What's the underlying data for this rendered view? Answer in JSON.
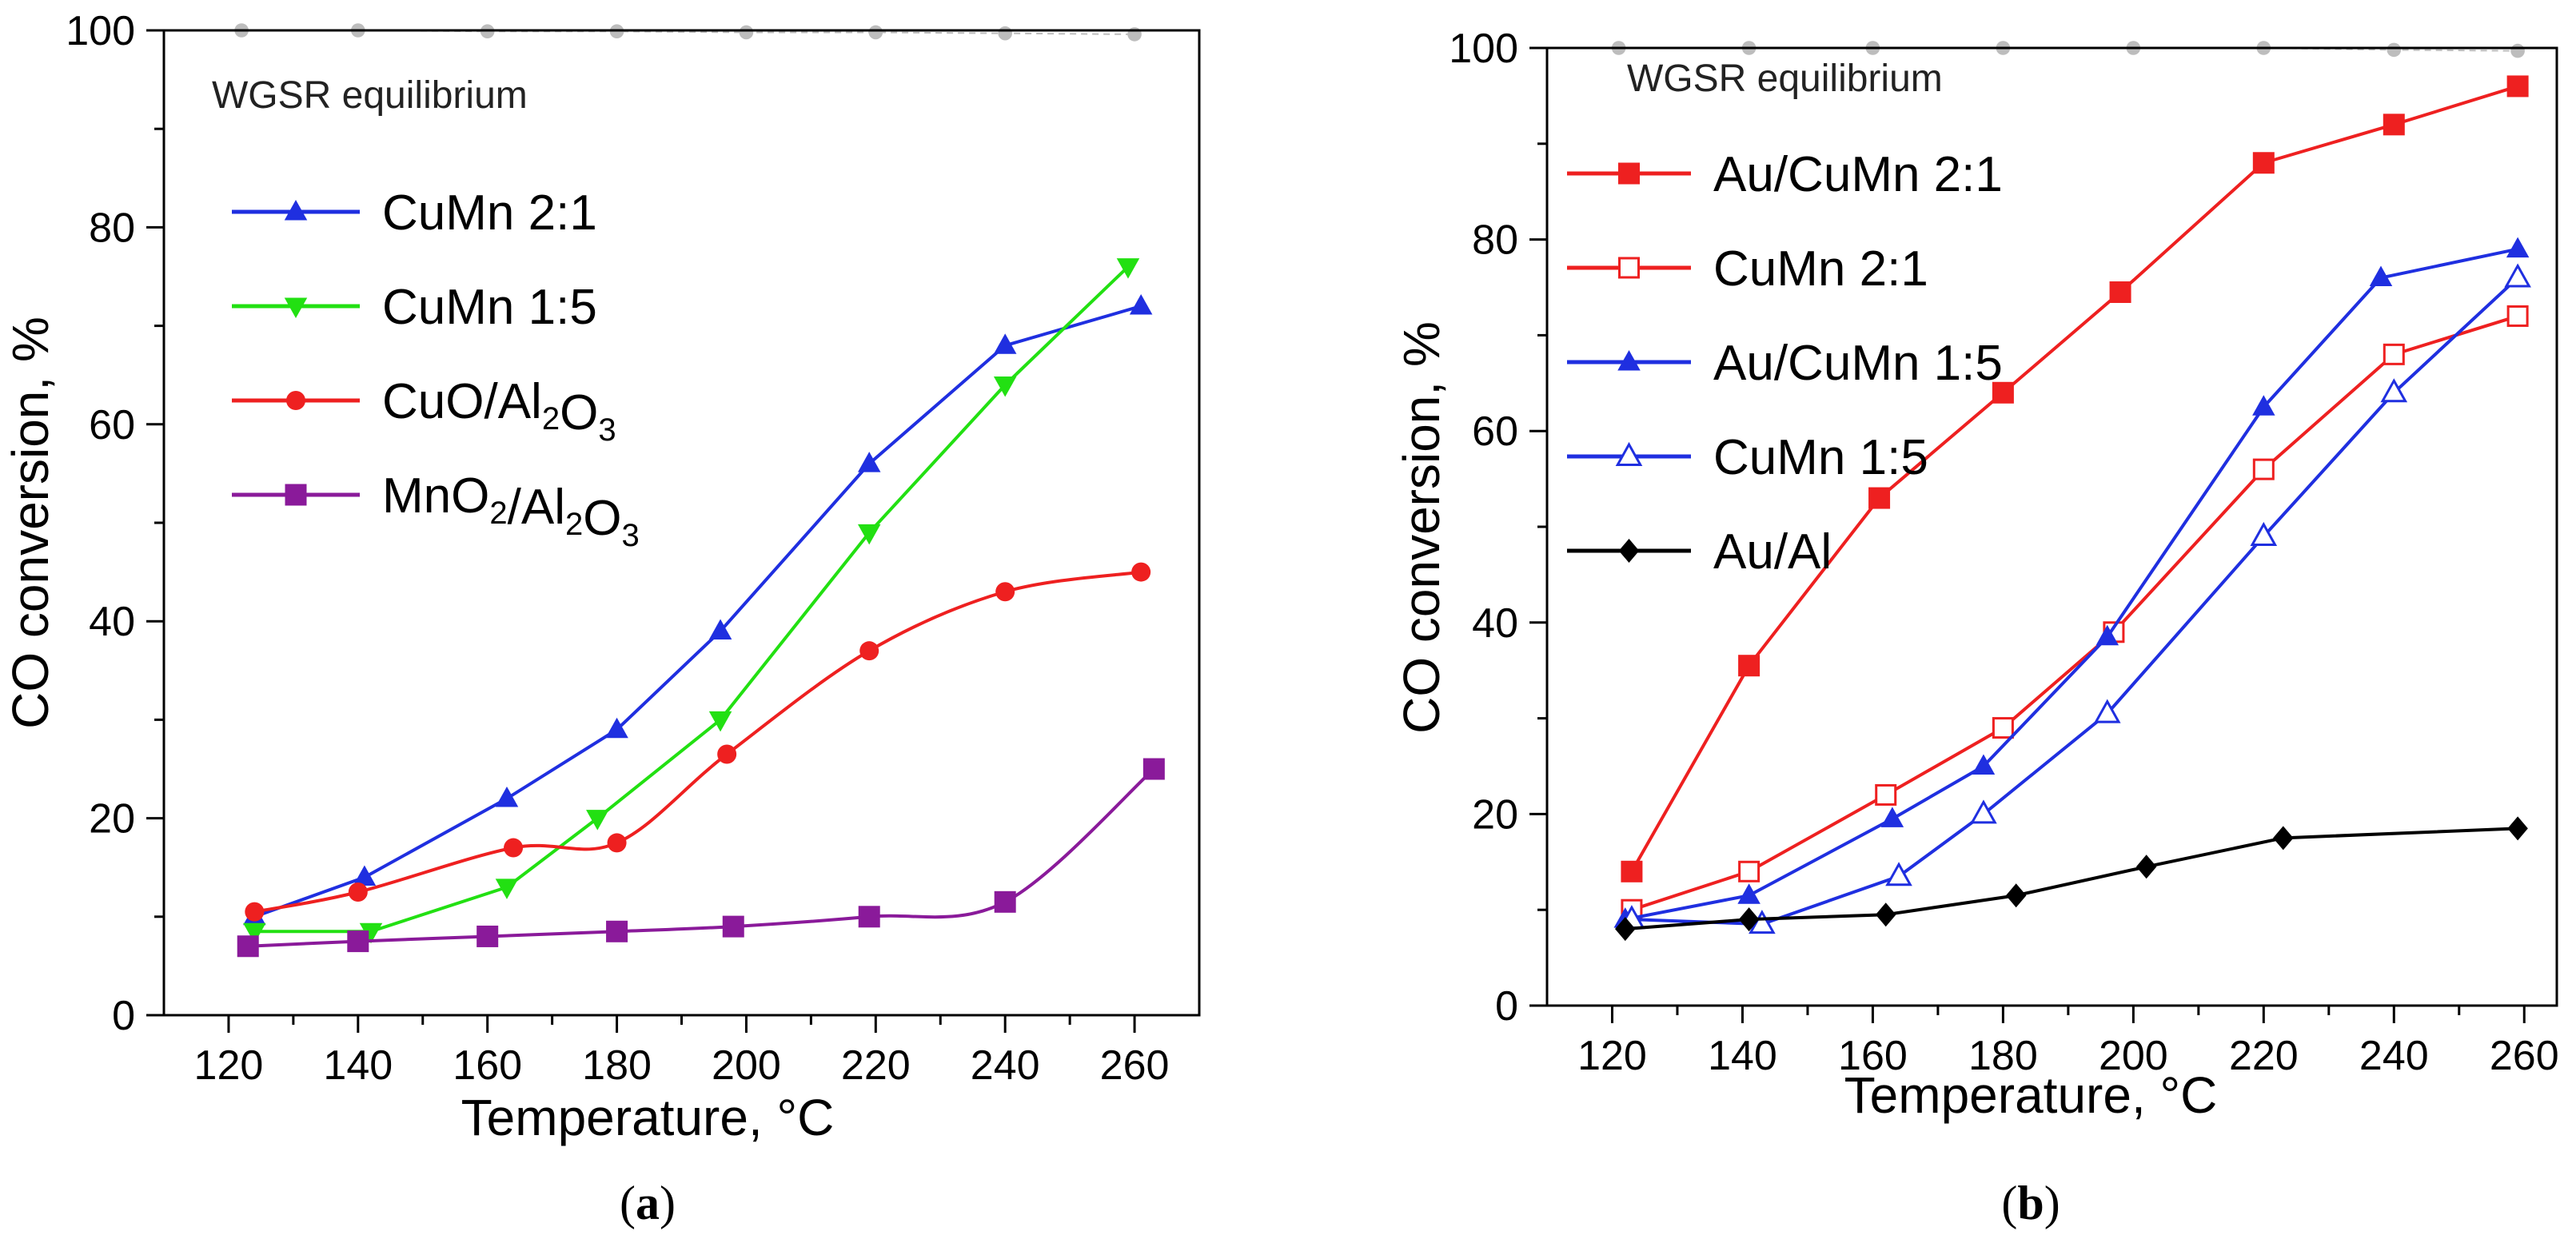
{
  "panels": [
    {
      "id": "a",
      "caption_letter": "a",
      "chart_data": {
        "type": "line",
        "xlabel": "Temperature, °C",
        "ylabel": "CO conversion, %",
        "xlim": [
          110,
          270
        ],
        "ylim": [
          0,
          100
        ],
        "xticks": [
          120,
          140,
          160,
          180,
          200,
          220,
          240,
          260
        ],
        "yticks": [
          0,
          20,
          40,
          60,
          80,
          100
        ],
        "annotation": "WGSR equilibrium",
        "legend_position": "upper-left",
        "series": [
          {
            "name": "WGSR equilibrium",
            "color": "#bdbdbd",
            "marker": "circle",
            "dashed": true,
            "x": [
              122,
              140,
              160,
              180,
              200,
              220,
              240,
              260
            ],
            "y": [
              100,
              100,
              99.9,
              99.9,
              99.8,
              99.8,
              99.7,
              99.6
            ]
          },
          {
            "name": "CuMn 2:1",
            "legend": [
              "CuMn 2:1"
            ],
            "color": "#1f2fe0",
            "marker": "triangle-up",
            "x": [
              124,
              141,
              163,
              180,
              196,
              219,
              240,
              261
            ],
            "y": [
              10,
              14,
              22,
              29,
              39,
              56,
              68,
              72
            ]
          },
          {
            "name": "CuMn 1:5",
            "legend": [
              "CuMn 1:5"
            ],
            "color": "#22e012",
            "marker": "triangle-down",
            "x": [
              124,
              142,
              163,
              177,
              196,
              219,
              240,
              259
            ],
            "y": [
              8.5,
              8.5,
              13,
              20,
              30,
              49,
              64,
              76
            ]
          },
          {
            "name": "CuO/Al2O3",
            "legend": [
              "CuO/Al",
              "2",
              "O",
              "3"
            ],
            "color": "#ee2020",
            "marker": "circle",
            "x": [
              124,
              140,
              164,
              180,
              197,
              219,
              240,
              261
            ],
            "y": [
              10.5,
              12.5,
              17,
              17.5,
              26.5,
              37,
              43,
              45
            ],
            "smooth": true
          },
          {
            "name": "MnO2/Al2O3",
            "legend": [
              "MnO",
              "2",
              "/Al",
              "2",
              "O",
              "3"
            ],
            "color": "#8a1a9a",
            "marker": "square",
            "x": [
              123,
              140,
              160,
              180,
              198,
              219,
              240,
              263
            ],
            "y": [
              7,
              7.5,
              8,
              8.5,
              9,
              10,
              11.5,
              25
            ],
            "smooth": true
          }
        ]
      }
    },
    {
      "id": "b",
      "caption_letter": "b",
      "chart_data": {
        "type": "line",
        "xlabel": "Temperature, °C",
        "ylabel": "CO conversion, %",
        "xlim": [
          110,
          265
        ],
        "ylim": [
          0,
          100
        ],
        "xticks": [
          120,
          140,
          160,
          180,
          200,
          220,
          240,
          260
        ],
        "yticks": [
          0,
          20,
          40,
          60,
          80,
          100
        ],
        "annotation": "WGSR equilibrium",
        "legend_position": "upper-left",
        "series": [
          {
            "name": "WGSR equilibrium",
            "color": "#bdbdbd",
            "marker": "circle",
            "dashed": true,
            "x": [
              121,
              141,
              160,
              180,
              200,
              220,
              240,
              259
            ],
            "y": [
              100,
              100,
              100,
              100,
              100,
              100,
              99.8,
              99.7
            ]
          },
          {
            "name": "Au/CuMn 2:1",
            "legend": [
              "Au/CuMn 2:1"
            ],
            "color": "#ee2020",
            "marker": "square",
            "x": [
              123,
              141,
              161,
              180,
              198,
              220,
              240,
              259
            ],
            "y": [
              14,
              35.5,
              53,
              64,
              74.5,
              88,
              92,
              96
            ]
          },
          {
            "name": "CuMn 2:1",
            "legend": [
              "CuMn 2:1"
            ],
            "color": "#ee2020",
            "marker": "square-open",
            "x": [
              123,
              141,
              162,
              180,
              197,
              220,
              240,
              259
            ],
            "y": [
              10,
              14,
              22,
              29,
              39,
              56,
              68,
              72
            ]
          },
          {
            "name": "Au/CuMn 1:5",
            "legend": [
              "Au/CuMn 1:5"
            ],
            "color": "#1f2fe0",
            "marker": "triangle-up",
            "x": [
              122,
              141,
              163,
              177,
              196,
              220,
              238,
              259
            ],
            "y": [
              9,
              11.5,
              19.5,
              25,
              38.5,
              62.5,
              76,
              79
            ]
          },
          {
            "name": "CuMn 1:5",
            "legend": [
              "CuMn 1:5"
            ],
            "color": "#1f2fe0",
            "marker": "triangle-open",
            "x": [
              123,
              143,
              164,
              177,
              196,
              220,
              240,
              259
            ],
            "y": [
              9,
              8.5,
              13.5,
              20,
              30.5,
              49,
              64,
              76
            ]
          },
          {
            "name": "Au/Al",
            "legend": [
              "Au/Al"
            ],
            "color": "#000000",
            "marker": "diamond",
            "x": [
              122,
              141,
              162,
              182,
              202,
              223,
              259
            ],
            "y": [
              8,
              9,
              9.5,
              11.5,
              14.5,
              17.5,
              18.5
            ]
          }
        ]
      }
    }
  ]
}
